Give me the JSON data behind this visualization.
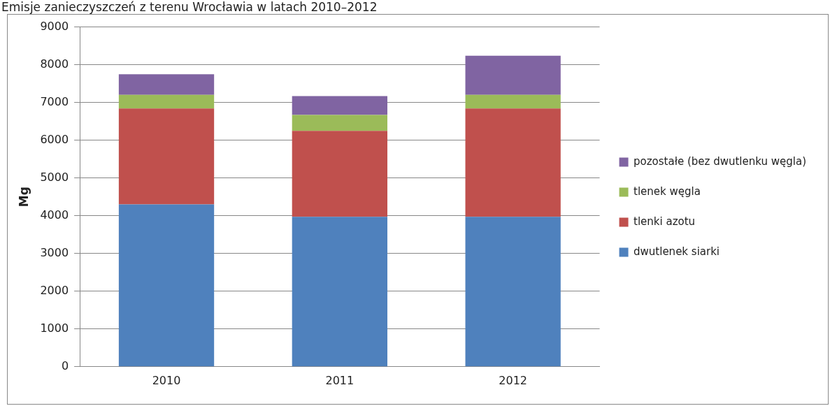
{
  "chart_data": {
    "type": "bar",
    "title": "Emisje zanieczyszczeń z terenu Wrocławia w latach 2010–2012",
    "ylabel": "Mg",
    "categories": [
      "2010",
      "2011",
      "2012"
    ],
    "stacked": true,
    "ylim": [
      0,
      9000
    ],
    "yticks": [
      0,
      1000,
      2000,
      3000,
      4000,
      5000,
      6000,
      7000,
      8000,
      9000
    ],
    "grid": "y",
    "legend": "right",
    "series": [
      {
        "name": "dwutlenek siarki",
        "color": "#4f81bd",
        "values": [
          4300,
          3970,
          3970
        ]
      },
      {
        "name": "tlenki azotu",
        "color": "#c0504d",
        "values": [
          2540,
          2280,
          2870
        ]
      },
      {
        "name": "tlenek węgla",
        "color": "#9bbb59",
        "values": [
          360,
          420,
          360
        ]
      },
      {
        "name": "pozostałe (bez dwutlenku węgla)",
        "color": "#8064a2",
        "values": [
          550,
          500,
          1040
        ]
      }
    ]
  }
}
